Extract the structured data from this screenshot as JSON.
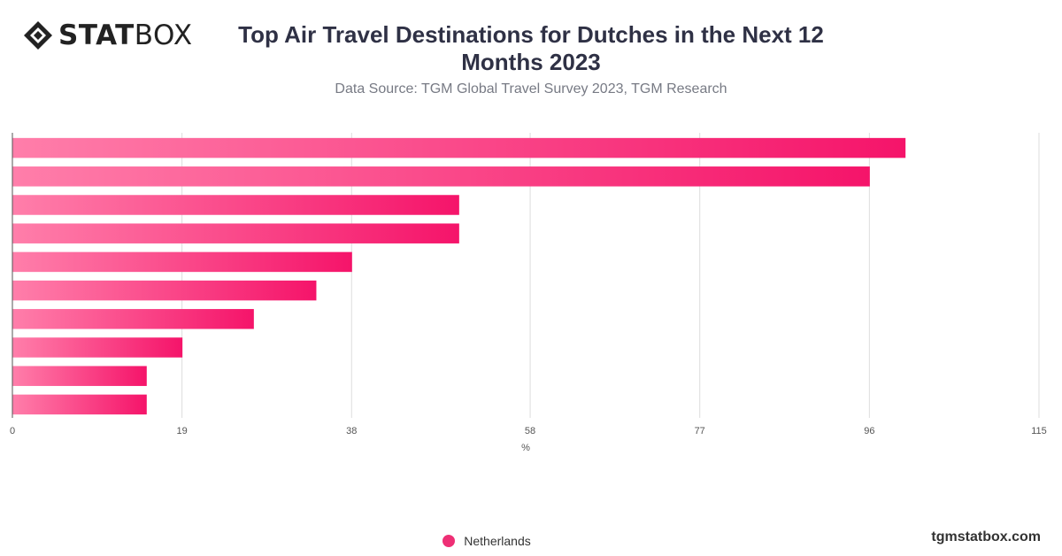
{
  "brand": {
    "logo_text_bold": "STAT",
    "logo_text_light": "BOX",
    "site": "tgmstatbox.com"
  },
  "header": {
    "title": "Top Air Travel Destinations for Dutches in the Next 12 Months 2023",
    "subtitle": "Data Source: TGM Global Travel Survey 2023, TGM Research"
  },
  "chart_data": {
    "type": "bar",
    "orientation": "horizontal",
    "title": "Top Air Travel Destinations for Dutches in the Next 12 Months 2023",
    "xlabel": "%",
    "ylabel": "",
    "xlim": [
      0,
      115
    ],
    "x_ticks": [
      "0",
      "19",
      "38",
      "58",
      "77",
      "96",
      "115"
    ],
    "categories": [
      "",
      "",
      "",
      "",
      "",
      "",
      "",
      "",
      "",
      ""
    ],
    "series": [
      {
        "name": "Netherlands",
        "values": [
          100,
          96,
          50,
          50,
          38,
          34,
          27,
          19,
          15,
          15
        ]
      }
    ],
    "grid": true,
    "legend_position": "bottom",
    "colors": {
      "bar_start": "#ff7eaa",
      "bar_end": "#f5146a",
      "grid": "#dddddd",
      "legend": "#ee2f75"
    }
  }
}
